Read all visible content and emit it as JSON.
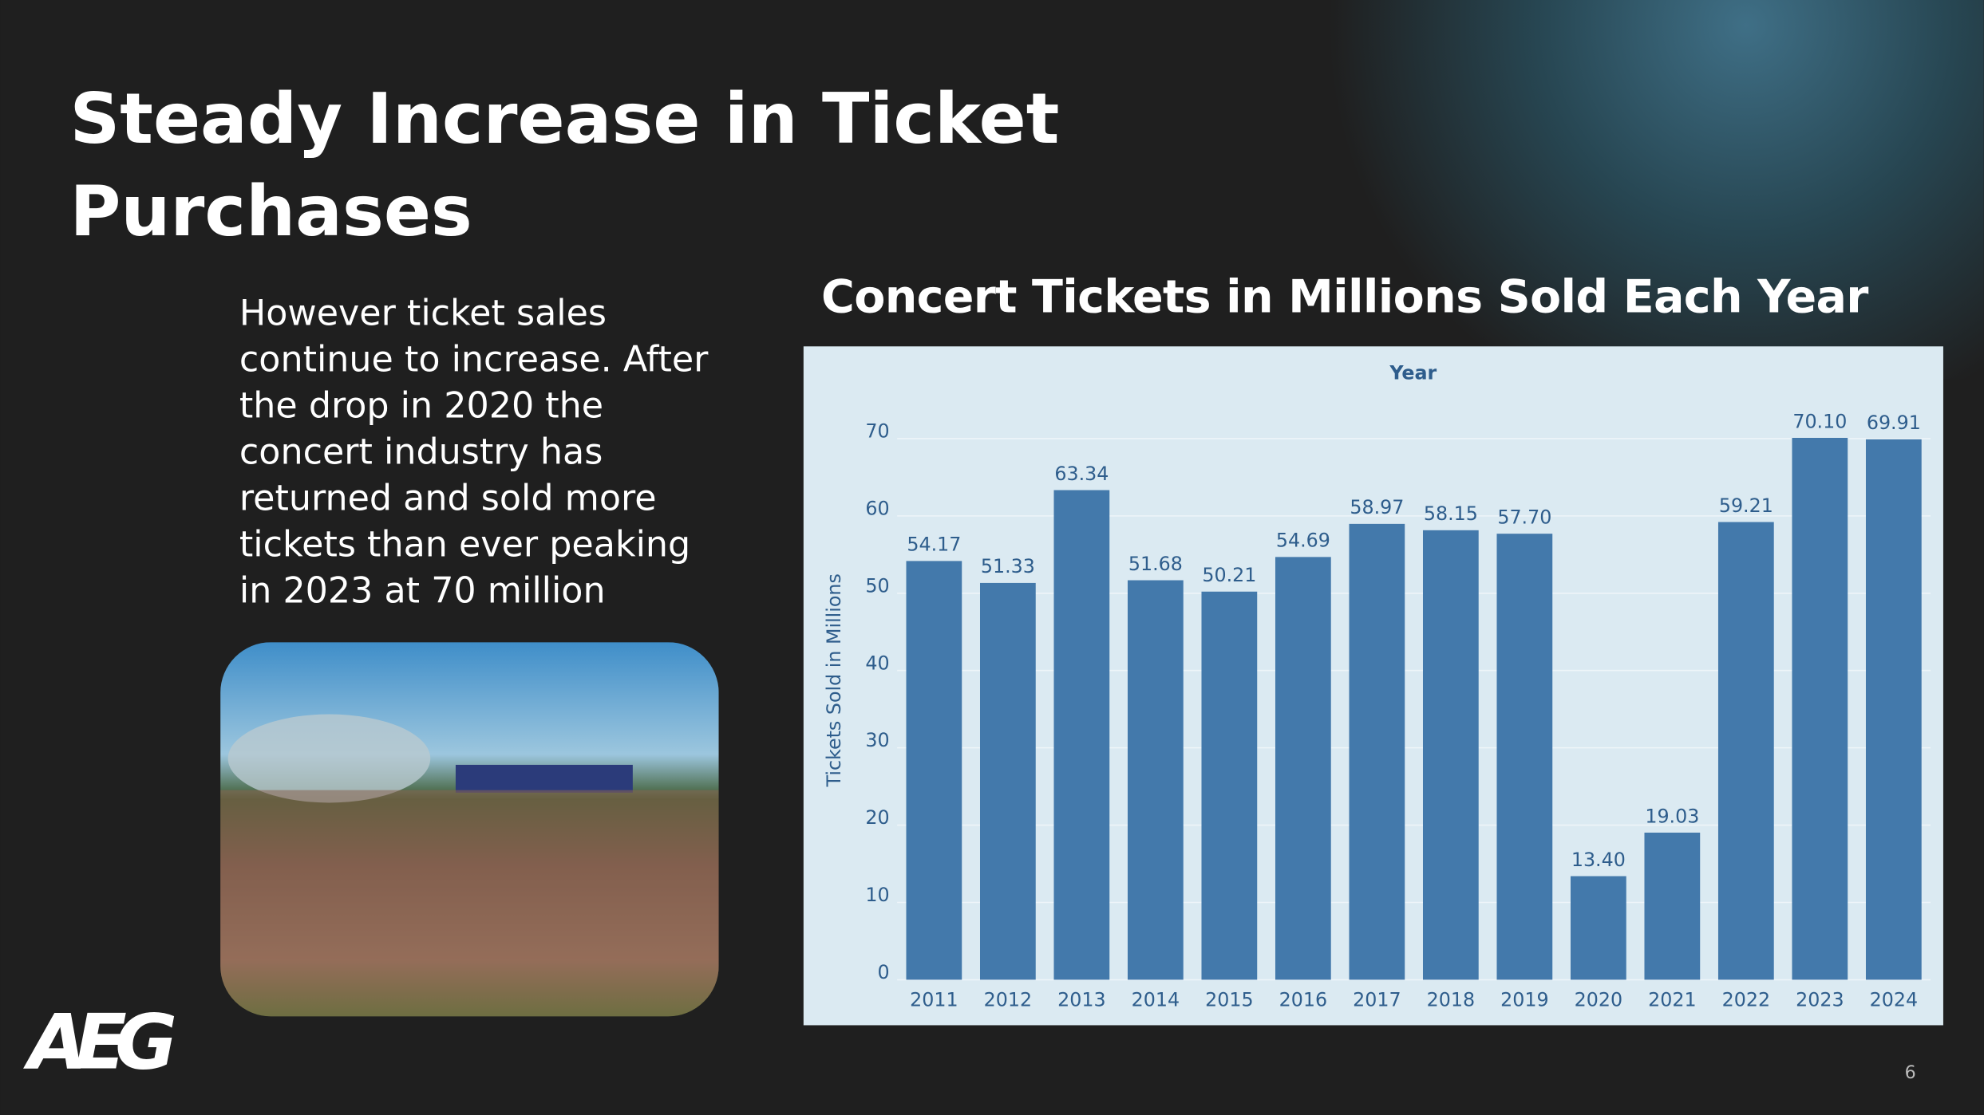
{
  "slide": {
    "title_lines": [
      "Steady Increase in Ticket",
      "Purchases"
    ],
    "body_lines": [
      "However ticket sales",
      "continue to increase. After",
      "the drop in 2020 the",
      "concert industry has",
      "returned and sold more",
      "tickets than ever peaking",
      "in 2023 at 70 million"
    ],
    "logo": "AEG",
    "page_number": "6"
  },
  "chart_data": {
    "type": "bar",
    "title": "Concert Tickets in Millions Sold Each Year",
    "x_label": "Year",
    "y_label": "Tickets Sold in Millions",
    "categories": [
      "2011",
      "2012",
      "2013",
      "2014",
      "2015",
      "2016",
      "2017",
      "2018",
      "2019",
      "2020",
      "2021",
      "2022",
      "2023",
      "2024"
    ],
    "values": [
      54.17,
      51.33,
      63.34,
      51.68,
      50.21,
      54.69,
      58.97,
      58.15,
      57.7,
      13.4,
      19.03,
      59.21,
      70.1,
      69.91
    ],
    "value_labels": [
      "54.17",
      "51.33",
      "63.34",
      "51.68",
      "50.21",
      "54.69",
      "58.97",
      "58.15",
      "57.70",
      "13.40",
      "19.03",
      "59.21",
      "70.10",
      "69.91"
    ],
    "color": "#4379ab",
    "ylim": [
      0,
      75
    ],
    "yticks": [
      0,
      10,
      20,
      30,
      40,
      50,
      60,
      70
    ],
    "grid": true
  }
}
